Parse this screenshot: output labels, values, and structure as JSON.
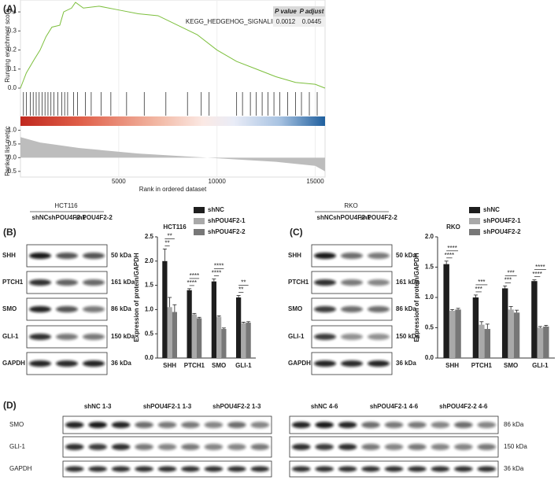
{
  "panel_labels": [
    "(A)",
    "(B)",
    "(C)",
    "(D)"
  ],
  "chart_data": [
    {
      "type": "gsea",
      "y_label": "Running enrichment score",
      "x_label": "Rank in ordered dataset",
      "pathway": "KEGG_HEDGEHOG_SIGNALING_PATHWAY",
      "color": "#7cbf3c",
      "x": [
        0,
        300,
        700,
        1000,
        1300,
        1600,
        2000,
        2200,
        2600,
        2800,
        3200,
        4000,
        5000,
        6000,
        7000,
        8000,
        9000,
        10000,
        11000,
        12000,
        13000,
        14000,
        15000,
        15500
      ],
      "values": [
        0,
        0.08,
        0.15,
        0.2,
        0.27,
        0.32,
        0.33,
        0.4,
        0.42,
        0.45,
        0.42,
        0.43,
        0.41,
        0.39,
        0.38,
        0.33,
        0.28,
        0.2,
        0.14,
        0.1,
        0.06,
        0.03,
        0.02,
        0
      ],
      "xlim": [
        0,
        15500
      ],
      "xticks": [
        5000,
        10000,
        15000
      ],
      "ylim": [
        0,
        0.45
      ],
      "yticks": [
        {
          "value": 0,
          "label": "0.0"
        },
        0.1,
        0.2,
        0.3,
        0.4
      ],
      "hits": [
        150,
        300,
        500,
        650,
        800,
        950,
        1100,
        1250,
        1400,
        1550,
        1700,
        1900,
        2100,
        2250,
        2400,
        2700,
        2900,
        3300,
        3600,
        4100,
        4600,
        5400,
        6300,
        7400,
        8500,
        9200,
        9600,
        11000,
        11300,
        11700,
        12000,
        12300,
        12600,
        12900,
        13200,
        13600,
        14000,
        14300,
        14700,
        15100
      ],
      "stats_headers": [
        "P value",
        "P adjust"
      ],
      "stats_values": [
        0.0012,
        0.0445
      ],
      "ranked_metric": {
        "y_label": "Ranked list metric",
        "x": [
          0,
          1000,
          3000,
          6000,
          9500,
          13000,
          15000,
          15500
        ],
        "values": [
          0.75,
          0.55,
          0.35,
          0.15,
          0,
          -0.15,
          -0.3,
          -0.5
        ],
        "ylim": [
          -0.65,
          1.1
        ],
        "yticks": [
          {
            "value": 1,
            "label": "1.0"
          },
          0.5,
          {
            "value": 0,
            "label": "0.0"
          },
          -0.5
        ]
      }
    },
    {
      "type": "bar",
      "title": "HCT116",
      "y_label": "Expression of protein/GAPDH",
      "categories": [
        "SHH",
        "PTCH1",
        "SMO",
        "GLI-1"
      ],
      "series": [
        {
          "name": "shNC",
          "color": "#1e1e1e",
          "values": [
            2.0,
            1.4,
            1.58,
            1.25
          ],
          "errors": [
            0.25,
            0.03,
            0.05,
            0.04
          ]
        },
        {
          "name": "shPOU4F2-1",
          "color": "#a9a9a9",
          "values": [
            1.05,
            0.9,
            0.85,
            0.72
          ],
          "errors": [
            0.2,
            0.02,
            0.02,
            0.02
          ]
        },
        {
          "name": "shPOU4F2-2",
          "color": "#777777",
          "values": [
            0.95,
            0.82,
            0.6,
            0.73
          ],
          "errors": [
            0.15,
            0.02,
            0.02,
            0.02
          ]
        }
      ],
      "ylim": [
        0,
        2.5
      ],
      "yticks": [
        {
          "value": 0,
          "label": "0.0"
        },
        0.5,
        {
          "value": 1,
          "label": "1.0"
        },
        1.5,
        {
          "value": 2,
          "label": "2.0"
        },
        2.5
      ],
      "significance": [
        [
          "**",
          "**"
        ],
        [
          "****",
          "****"
        ],
        [
          "****",
          "****"
        ],
        [
          "**",
          "**"
        ]
      ]
    },
    {
      "type": "bar",
      "title": "RKO",
      "y_label": "Expression of protein/GAPDH",
      "categories": [
        "SHH",
        "PTCH1",
        "SMO",
        "GLI-1"
      ],
      "series": [
        {
          "name": "shNC",
          "color": "#1e1e1e",
          "values": [
            1.55,
            1.0,
            1.15,
            1.27
          ],
          "errors": [
            0.05,
            0.04,
            0.04,
            0.02
          ]
        },
        {
          "name": "shPOU4F2-1",
          "color": "#a9a9a9",
          "values": [
            0.78,
            0.55,
            0.8,
            0.5
          ],
          "errors": [
            0.02,
            0.05,
            0.05,
            0.02
          ]
        },
        {
          "name": "shPOU4F2-2",
          "color": "#777777",
          "values": [
            0.8,
            0.48,
            0.75,
            0.52
          ],
          "errors": [
            0.02,
            0.08,
            0.04,
            0.02
          ]
        }
      ],
      "ylim": [
        0,
        2.0
      ],
      "yticks": [
        {
          "value": 0,
          "label": "0.0"
        },
        0.5,
        {
          "value": 1,
          "label": "1.0"
        },
        1.5,
        {
          "value": 2,
          "label": "2.0"
        }
      ],
      "significance": [
        [
          "****",
          "****"
        ],
        [
          "***",
          "***"
        ],
        [
          "***",
          "***"
        ],
        [
          "****",
          "****"
        ]
      ]
    }
  ],
  "blots": {
    "B": {
      "cell_line": "HCT116",
      "lanes": [
        "shNC",
        "shPOU4F2-1",
        "shPOU4F2-2"
      ],
      "rows": [
        {
          "protein": "SHH",
          "size": "50 kDa"
        },
        {
          "protein": "PTCH1",
          "size": "161 kDa"
        },
        {
          "protein": "SMO",
          "size": "86 kDa"
        },
        {
          "protein": "GLI-1",
          "size": "150 kDa"
        },
        {
          "protein": "GAPDH",
          "size": "36 kDa"
        }
      ]
    },
    "C": {
      "cell_line": "RKO",
      "lanes": [
        "shNC",
        "shPOU4F2-1",
        "shPOU4F2-2"
      ],
      "rows": [
        {
          "protein": "SHH",
          "size": "50 kDa"
        },
        {
          "protein": "PTCH1",
          "size": "161 kDa"
        },
        {
          "protein": "SMO",
          "size": "86 kDa"
        },
        {
          "protein": "GLI-1",
          "size": "150 kDa"
        },
        {
          "protein": "GAPDH",
          "size": "36 kDa"
        }
      ]
    },
    "D": {
      "groups_left": [
        "shNC 1-3",
        "shPOU4F2-1 1-3",
        "shPOU4F2-2 1-3"
      ],
      "groups_right": [
        "shNC 4-6",
        "shPOU4F2-1 4-6",
        "shPOU4F2-2 4-6"
      ],
      "rows": [
        {
          "protein": "SMO",
          "size": "86 kDa"
        },
        {
          "protein": "GLI-1",
          "size": "150 kDa"
        },
        {
          "protein": "GAPDH",
          "size": "36 kDa"
        }
      ]
    }
  }
}
